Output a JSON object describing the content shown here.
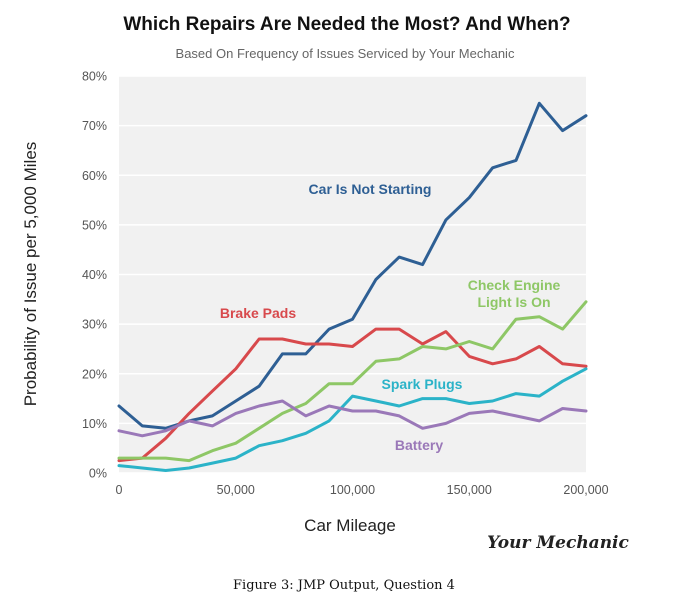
{
  "chart_data": {
    "type": "line",
    "title": "Which Repairs Are Needed the Most? And When?",
    "subtitle": "Based On Frequency of Issues Serviced by Your Mechanic",
    "xlabel": "Car Mileage",
    "ylabel": "Probability of Issue per 5,000 Miles",
    "xlim": [
      0,
      200000
    ],
    "ylim": [
      0,
      80
    ],
    "x_ticks": [
      0,
      50000,
      100000,
      150000,
      200000
    ],
    "x_tick_labels": [
      "0",
      "50,000",
      "100,000",
      "150,000",
      "200,000"
    ],
    "y_ticks": [
      0,
      10,
      20,
      30,
      40,
      50,
      60,
      70,
      80
    ],
    "y_tick_labels": [
      "0%",
      "10%",
      "20%",
      "30%",
      "40%",
      "50%",
      "60%",
      "70%",
      "80%"
    ],
    "grid": "horizontal",
    "x": [
      0,
      10000,
      20000,
      30000,
      40000,
      50000,
      60000,
      70000,
      80000,
      90000,
      100000,
      110000,
      120000,
      130000,
      140000,
      150000,
      160000,
      170000,
      180000,
      190000,
      200000
    ],
    "series": [
      {
        "name": "Car Is Not Starting",
        "label_lines": [
          "Car Is Not Starting"
        ],
        "color": "#2e5f94",
        "values": [
          13.5,
          9.5,
          9,
          10.5,
          11.5,
          14.5,
          17.5,
          24,
          24,
          29,
          31,
          39,
          43.5,
          42,
          51,
          55.5,
          61.5,
          63,
          74.5,
          69,
          72
        ]
      },
      {
        "name": "Brake Pads",
        "label_lines": [
          "Brake Pads"
        ],
        "color": "#d8494c",
        "values": [
          2.5,
          3,
          7,
          12,
          16.5,
          21,
          27,
          27,
          26,
          26,
          25.5,
          29,
          29,
          26,
          28.5,
          23.5,
          22,
          23,
          25.5,
          22,
          21.5
        ]
      },
      {
        "name": "Check Engine Light Is On",
        "label_lines": [
          "Check Engine",
          "Light Is On"
        ],
        "color": "#8ec766",
        "values": [
          3,
          3,
          3,
          2.5,
          4.5,
          6,
          9,
          12,
          14,
          18,
          18,
          22.5,
          23,
          25.5,
          25,
          26.5,
          25,
          31,
          31.5,
          29,
          34.5
        ]
      },
      {
        "name": "Spark Plugs",
        "label_lines": [
          "Spark Plugs"
        ],
        "color": "#2bb3c8",
        "values": [
          1.5,
          1,
          0.5,
          1,
          2,
          3,
          5.5,
          6.5,
          8,
          10.5,
          15.5,
          14.5,
          13.5,
          15,
          15,
          14,
          14.5,
          16,
          15.5,
          18.5,
          21
        ]
      },
      {
        "name": "Battery",
        "label_lines": [
          "Battery"
        ],
        "color": "#9a78b8",
        "values": [
          8.5,
          7.5,
          8.5,
          10.5,
          9.5,
          12,
          13.5,
          14.5,
          11.5,
          13.5,
          12.5,
          12.5,
          11.5,
          9,
          10,
          12,
          12.5,
          11.5,
          10.5,
          13,
          12.5
        ]
      }
    ]
  },
  "brand": "Your Mechanic",
  "caption": "Figure 3: JMP Output, Question 4"
}
